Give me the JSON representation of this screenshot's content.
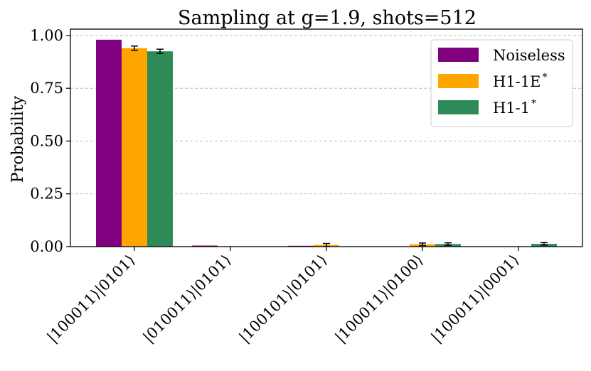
{
  "chart_data": {
    "type": "bar",
    "title": "Sampling at g=1.9, shots=512",
    "xlabel": "",
    "ylabel": "Probability",
    "ylim": [
      0,
      1.03
    ],
    "yticks": [
      "0.00",
      "0.25",
      "0.50",
      "0.75",
      "1.00"
    ],
    "grid": "horizontal dashed",
    "legend_position": "top-right",
    "categories": [
      "|100011⟩|0101⟩",
      "|010011⟩|0101⟩",
      "|100101⟩|0101⟩",
      "|100011⟩|0100⟩",
      "|100011⟩|0001⟩"
    ],
    "series": [
      {
        "name": "Noiseless",
        "name_sup": "",
        "color": "#800080",
        "values": [
          0.98,
          0.005,
          0.004,
          0.0,
          0.0
        ],
        "errors": [
          0,
          0,
          0,
          0,
          0
        ]
      },
      {
        "name": "H1-1E",
        "name_sup": "*",
        "color": "#FFA500",
        "values": [
          0.94,
          0.0,
          0.008,
          0.011,
          0.0
        ],
        "errors": [
          0.01,
          0,
          0.007,
          0.006,
          0
        ]
      },
      {
        "name": "H1-1",
        "name_sup": "*",
        "color": "#2E8B57",
        "values": [
          0.925,
          0.0,
          0.0,
          0.012,
          0.013
        ],
        "errors": [
          0.01,
          0,
          0,
          0.006,
          0.006
        ]
      }
    ]
  }
}
